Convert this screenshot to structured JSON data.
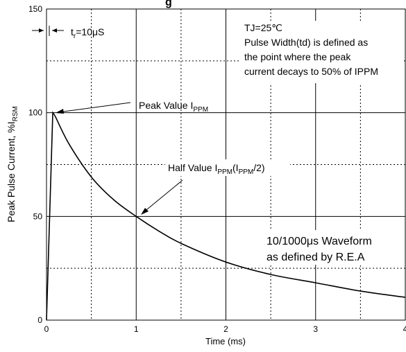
{
  "chart_data": {
    "type": "line",
    "title_fragment": "g",
    "xlabel": "Time (ms)",
    "ylabel": "Peak Pulse Current, %I",
    "ylabel_sub": "RSM",
    "xlim": [
      0,
      4
    ],
    "ylim": [
      0,
      150
    ],
    "x_ticks": [
      0,
      1,
      2,
      3,
      4
    ],
    "x_tick_labels": [
      "0",
      "1",
      "2",
      "3",
      "4"
    ],
    "x_minor_dotted": [
      0.5,
      1.5,
      2.5,
      3.5
    ],
    "y_ticks": [
      0,
      50,
      100,
      150
    ],
    "y_tick_labels": [
      "0",
      "50",
      "100",
      "150"
    ],
    "y_minor_dotted": [
      25,
      75,
      125
    ],
    "grid": true,
    "series": [
      {
        "color": "#000000",
        "x": [
          0,
          0.07,
          0.1,
          0.25,
          0.5,
          0.75,
          1.0,
          1.25,
          1.5,
          2.0,
          2.5,
          3.0,
          3.5,
          4.0
        ],
        "values": [
          0,
          100,
          98,
          85,
          69,
          58,
          50,
          43,
          37,
          28,
          22,
          18,
          14,
          11
        ]
      }
    ],
    "annotations": {
      "tr_prefix": "t",
      "tr_sub": "r",
      "tr_suffix": "=10μS",
      "tj": "TJ=25℃",
      "pulse_width_lines": [
        "Pulse Width(td) is defined as",
        "the point where the peak",
        "current decays to 50% of IPPM"
      ],
      "peak_prefix": "Peak Value I",
      "peak_sub": "PPM",
      "half_prefix": "Half Value I",
      "half_sub1": "PPM",
      "half_mid": "(I",
      "half_sub2": "PPM",
      "half_suffix": "/2)",
      "waveform_lines": [
        "10/1000μs Waveform",
        "as defined by R.E.A"
      ]
    }
  }
}
